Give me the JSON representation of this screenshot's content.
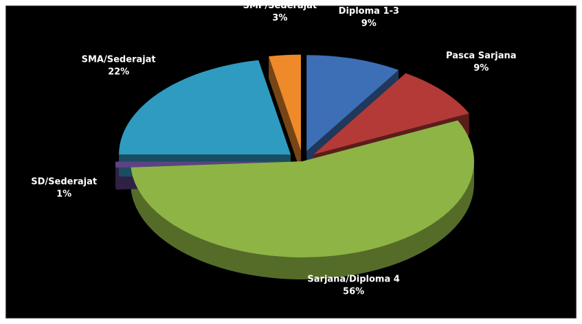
{
  "chart_data": {
    "type": "pie",
    "categories": [
      "Diploma 1-3",
      "Pasca Sarjana",
      "Sarjana/Diploma 4",
      "SD/Sederajat",
      "SMA/Sederajat",
      "SMP/Sederajat"
    ],
    "values": [
      9,
      9,
      56,
      1,
      22,
      3
    ],
    "value_labels": [
      "9%",
      "9%",
      "56%",
      "1%",
      "22%",
      "3%"
    ],
    "colors": [
      "#3d6fb6",
      "#b33a37",
      "#8db445",
      "#5e4285",
      "#2f9bc0",
      "#ee8a2a"
    ]
  }
}
